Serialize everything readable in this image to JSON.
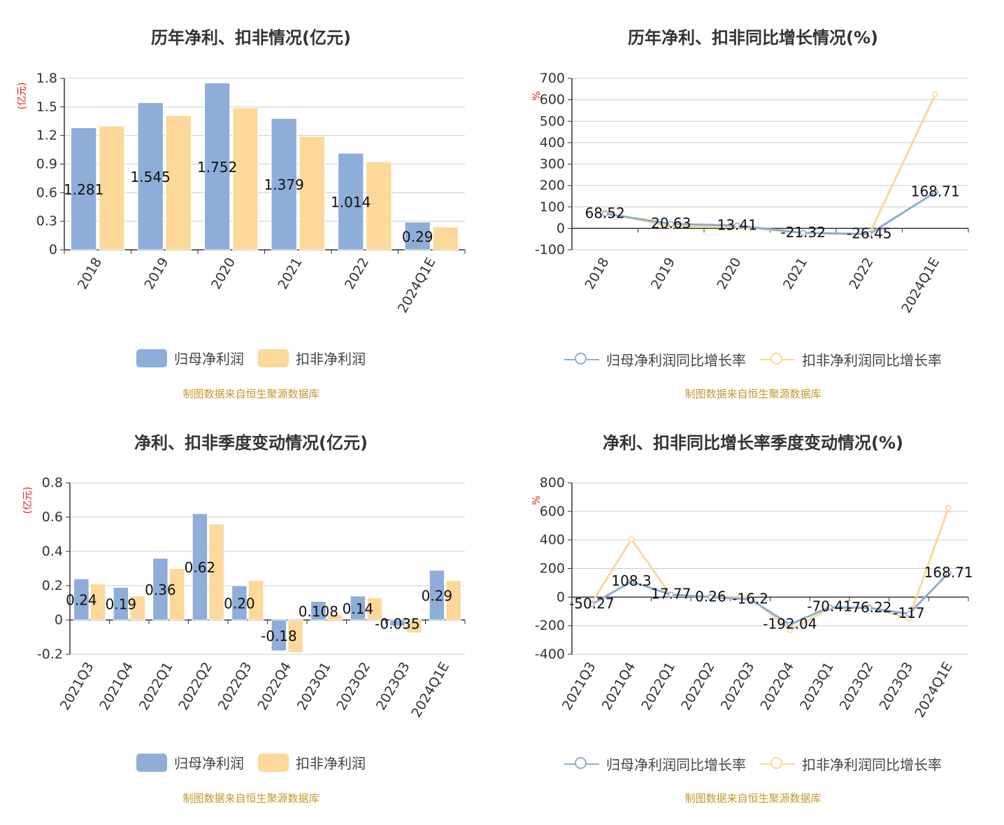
{
  "colors": {
    "net": "#8eadd8",
    "ded": "#fcd89a",
    "axisLabel": "#e02020",
    "source": "#c8962a"
  },
  "panels": [
    {
      "title": "历年净利、扣非情况(亿元)",
      "source": "制图数据来自恒生聚源数据库",
      "legend": [
        {
          "label": "归母净利润",
          "icon": "bar-swatch"
        },
        {
          "label": "扣非净利润",
          "icon": "bar-swatch"
        }
      ]
    },
    {
      "title": "历年净利、扣非同比增长情况(%)",
      "source": "制图数据来自恒生聚源数据库",
      "legend": [
        {
          "label": "归母净利润同比增长率",
          "icon": "line-circle"
        },
        {
          "label": "扣非净利润同比增长率",
          "icon": "line-circle"
        }
      ]
    },
    {
      "title": "净利、扣非季度变动情况(亿元)",
      "source": "制图数据来自恒生聚源数据库",
      "legend": [
        {
          "label": "归母净利润",
          "icon": "bar-swatch"
        },
        {
          "label": "扣非净利润",
          "icon": "bar-swatch"
        }
      ]
    },
    {
      "title": "净利、扣非同比增长率季度变动情况(%)",
      "source": "制图数据来自恒生聚源数据库",
      "legend": [
        {
          "label": "归母净利润同比增长率",
          "icon": "line-circle"
        },
        {
          "label": "扣非净利润同比增长率",
          "icon": "line-circle"
        }
      ]
    }
  ],
  "chart_data": [
    {
      "type": "bar",
      "title": "历年净利、扣非情况(亿元)",
      "ylabel": "(亿元)",
      "categories": [
        "2018",
        "2019",
        "2020",
        "2021",
        "2022",
        "2024Q1E"
      ],
      "ylim": [
        0,
        1.8
      ],
      "yticks": [
        0,
        0.3,
        0.6,
        0.9,
        1.2,
        1.5,
        1.8
      ],
      "ytick_labels": [
        "0",
        "0.3",
        "0.6",
        "0.9",
        "1.2",
        "1.5",
        "1.8"
      ],
      "grid": true,
      "series": [
        {
          "name": "归母净利润",
          "values": [
            1.281,
            1.545,
            1.752,
            1.379,
            1.014,
            0.29
          ],
          "labels": [
            "1.281",
            "1.545",
            "1.752",
            "1.379",
            "1.014",
            "0.29"
          ]
        },
        {
          "name": "扣非净利润",
          "values": [
            1.3,
            1.41,
            1.49,
            1.19,
            0.925,
            0.24
          ]
        }
      ]
    },
    {
      "type": "line",
      "title": "历年净利、扣非同比增长情况(%)",
      "ylabel": "%",
      "categories": [
        "2018",
        "2019",
        "2020",
        "2021",
        "2022",
        "2024Q1E"
      ],
      "ylim": [
        -100,
        700
      ],
      "yticks": [
        -100,
        0,
        100,
        200,
        300,
        400,
        500,
        600,
        700
      ],
      "ytick_labels": [
        "-100",
        "0",
        "100",
        "200",
        "300",
        "400",
        "500",
        "600",
        "700"
      ],
      "grid": true,
      "series": [
        {
          "name": "归母净利润同比增长率",
          "values": [
            68.52,
            20.63,
            13.41,
            -21.32,
            -26.45,
            168.71
          ],
          "labels": [
            "68.52",
            "20.63",
            "13.41",
            "-21.32",
            "-26.45",
            "168.71"
          ]
        },
        {
          "name": "扣非净利润同比增长率",
          "values": [
            75,
            8,
            6,
            -20,
            -28,
            626
          ]
        }
      ]
    },
    {
      "type": "bar",
      "title": "净利、扣非季度变动情况(亿元)",
      "ylabel": "(亿元)",
      "categories": [
        "2021Q3",
        "2021Q4",
        "2022Q1",
        "2022Q2",
        "2022Q3",
        "2022Q4",
        "2023Q1",
        "2023Q2",
        "2023Q3",
        "2024Q1E"
      ],
      "ylim": [
        -0.2,
        0.8
      ],
      "yticks": [
        -0.2,
        0,
        0.2,
        0.4,
        0.6,
        0.8
      ],
      "ytick_labels": [
        "-0.2",
        "0",
        "0.2",
        "0.4",
        "0.6",
        "0.8"
      ],
      "grid": true,
      "series": [
        {
          "name": "归母净利润",
          "values": [
            0.24,
            0.19,
            0.36,
            0.62,
            0.2,
            -0.18,
            0.108,
            0.14,
            -0.035,
            0.29
          ],
          "labels": [
            "0.24",
            "0.19",
            "0.36",
            "0.62",
            "0.20",
            "-0.18",
            "0.108",
            "0.14",
            "-0.035",
            "0.29"
          ]
        },
        {
          "name": "扣非净利润",
          "values": [
            0.21,
            0.14,
            0.3,
            0.56,
            0.23,
            -0.19,
            0.03,
            0.13,
            -0.075,
            0.23
          ]
        }
      ]
    },
    {
      "type": "line",
      "title": "净利、扣非同比增长率季度变动情况(%)",
      "ylabel": "%",
      "categories": [
        "2021Q3",
        "2021Q4",
        "2022Q1",
        "2022Q2",
        "2022Q3",
        "2022Q4",
        "2023Q1",
        "2023Q2",
        "2023Q3",
        "2024Q1E"
      ],
      "ylim": [
        -400,
        800
      ],
      "yticks": [
        -400,
        -200,
        0,
        200,
        400,
        600,
        800
      ],
      "ytick_labels": [
        "-400",
        "-200",
        "0",
        "200",
        "400",
        "600",
        "800"
      ],
      "grid": true,
      "series": [
        {
          "name": "归母净利润同比增长率",
          "values": [
            -50.27,
            108.3,
            17.77,
            0.26,
            -16.2,
            -192.04,
            -70.41,
            -76.22,
            -117,
            168.71
          ],
          "labels": [
            "-50.27",
            "108.3",
            "17.77",
            "0.26",
            "-16.2",
            "-192.04",
            "-70.41",
            "-76.22",
            "-117",
            "168.71"
          ]
        },
        {
          "name": "扣非净利润同比增长率",
          "values": [
            -40,
            405,
            10,
            5,
            0,
            -230,
            -80,
            -70,
            -150,
            625
          ]
        }
      ]
    }
  ]
}
